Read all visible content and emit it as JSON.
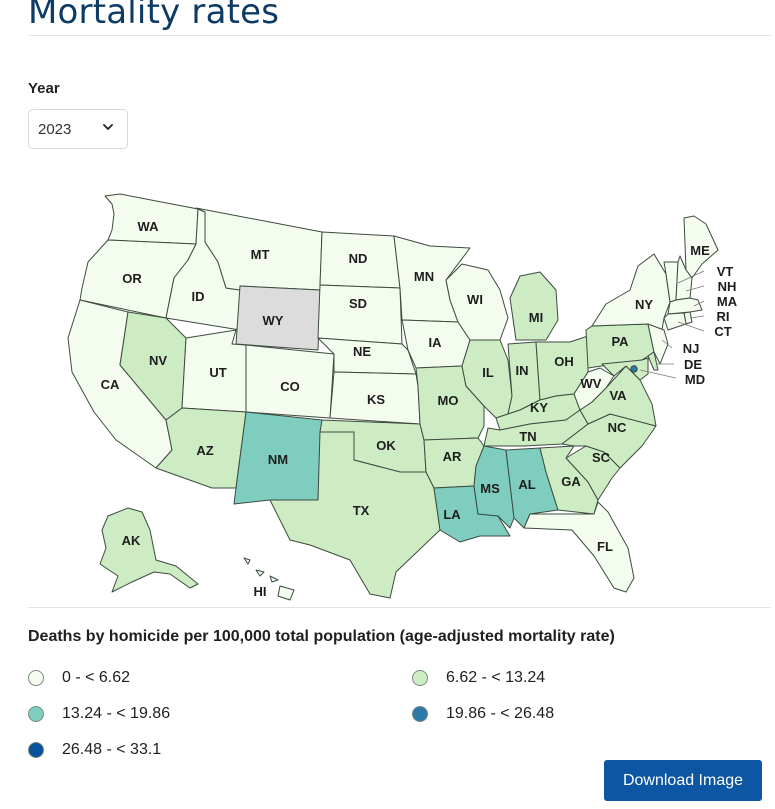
{
  "page": {
    "title": "Mortality rates"
  },
  "filter": {
    "year_label": "Year",
    "year_value": "2023",
    "chevron_icon": "chevron-down-icon"
  },
  "colors": {
    "bin0": "#f4fbef",
    "bin1": "#cdecc4",
    "bin2": "#7ecdbf",
    "bin3": "#2b7aa8",
    "bin4": "#08519c",
    "nodata": "#dcdcdc"
  },
  "map": {
    "states": [
      {
        "code": "WA",
        "bin": 0
      },
      {
        "code": "OR",
        "bin": 0
      },
      {
        "code": "CA",
        "bin": 0
      },
      {
        "code": "ID",
        "bin": 0
      },
      {
        "code": "NV",
        "bin": 1
      },
      {
        "code": "UT",
        "bin": 0
      },
      {
        "code": "AZ",
        "bin": 1
      },
      {
        "code": "MT",
        "bin": 0
      },
      {
        "code": "WY",
        "bin": "nodata"
      },
      {
        "code": "CO",
        "bin": 0
      },
      {
        "code": "NM",
        "bin": 2
      },
      {
        "code": "ND",
        "bin": 0
      },
      {
        "code": "SD",
        "bin": 0
      },
      {
        "code": "NE",
        "bin": 0
      },
      {
        "code": "KS",
        "bin": 0
      },
      {
        "code": "OK",
        "bin": 1
      },
      {
        "code": "TX",
        "bin": 1
      },
      {
        "code": "MN",
        "bin": 0
      },
      {
        "code": "IA",
        "bin": 0
      },
      {
        "code": "MO",
        "bin": 1
      },
      {
        "code": "AR",
        "bin": 1
      },
      {
        "code": "LA",
        "bin": 2
      },
      {
        "code": "WI",
        "bin": 0
      },
      {
        "code": "IL",
        "bin": 1
      },
      {
        "code": "MI",
        "bin": 1
      },
      {
        "code": "IN",
        "bin": 1
      },
      {
        "code": "OH",
        "bin": 1
      },
      {
        "code": "KY",
        "bin": 1
      },
      {
        "code": "TN",
        "bin": 1
      },
      {
        "code": "MS",
        "bin": 2
      },
      {
        "code": "AL",
        "bin": 2
      },
      {
        "code": "GA",
        "bin": 1
      },
      {
        "code": "FL",
        "bin": 0
      },
      {
        "code": "SC",
        "bin": 1
      },
      {
        "code": "NC",
        "bin": 1
      },
      {
        "code": "VA",
        "bin": 1
      },
      {
        "code": "WV",
        "bin": 0
      },
      {
        "code": "PA",
        "bin": 1
      },
      {
        "code": "NY",
        "bin": 0
      },
      {
        "code": "ME",
        "bin": 0
      },
      {
        "code": "VT",
        "bin": 0
      },
      {
        "code": "NH",
        "bin": 0
      },
      {
        "code": "MA",
        "bin": 0
      },
      {
        "code": "RI",
        "bin": 0
      },
      {
        "code": "CT",
        "bin": 0
      },
      {
        "code": "NJ",
        "bin": 0
      },
      {
        "code": "DE",
        "bin": 1
      },
      {
        "code": "MD",
        "bin": 1
      },
      {
        "code": "DC",
        "bin": 3
      },
      {
        "code": "AK",
        "bin": 1
      },
      {
        "code": "HI",
        "bin": 0
      }
    ]
  },
  "legend": {
    "title": "Deaths by homicide per 100,000 total population (age-adjusted mortality rate)",
    "items": [
      {
        "label": "0 - < 6.62",
        "color": "#f4fbef"
      },
      {
        "label": "6.62 - < 13.24",
        "color": "#cdecc4"
      },
      {
        "label": "13.24 - < 19.86",
        "color": "#7ecdbf"
      },
      {
        "label": "19.86 - < 26.48",
        "color": "#2b7aa8"
      },
      {
        "label": "26.48 - < 33.1",
        "color": "#08519c"
      }
    ]
  },
  "actions": {
    "download_label": "Download Image"
  }
}
